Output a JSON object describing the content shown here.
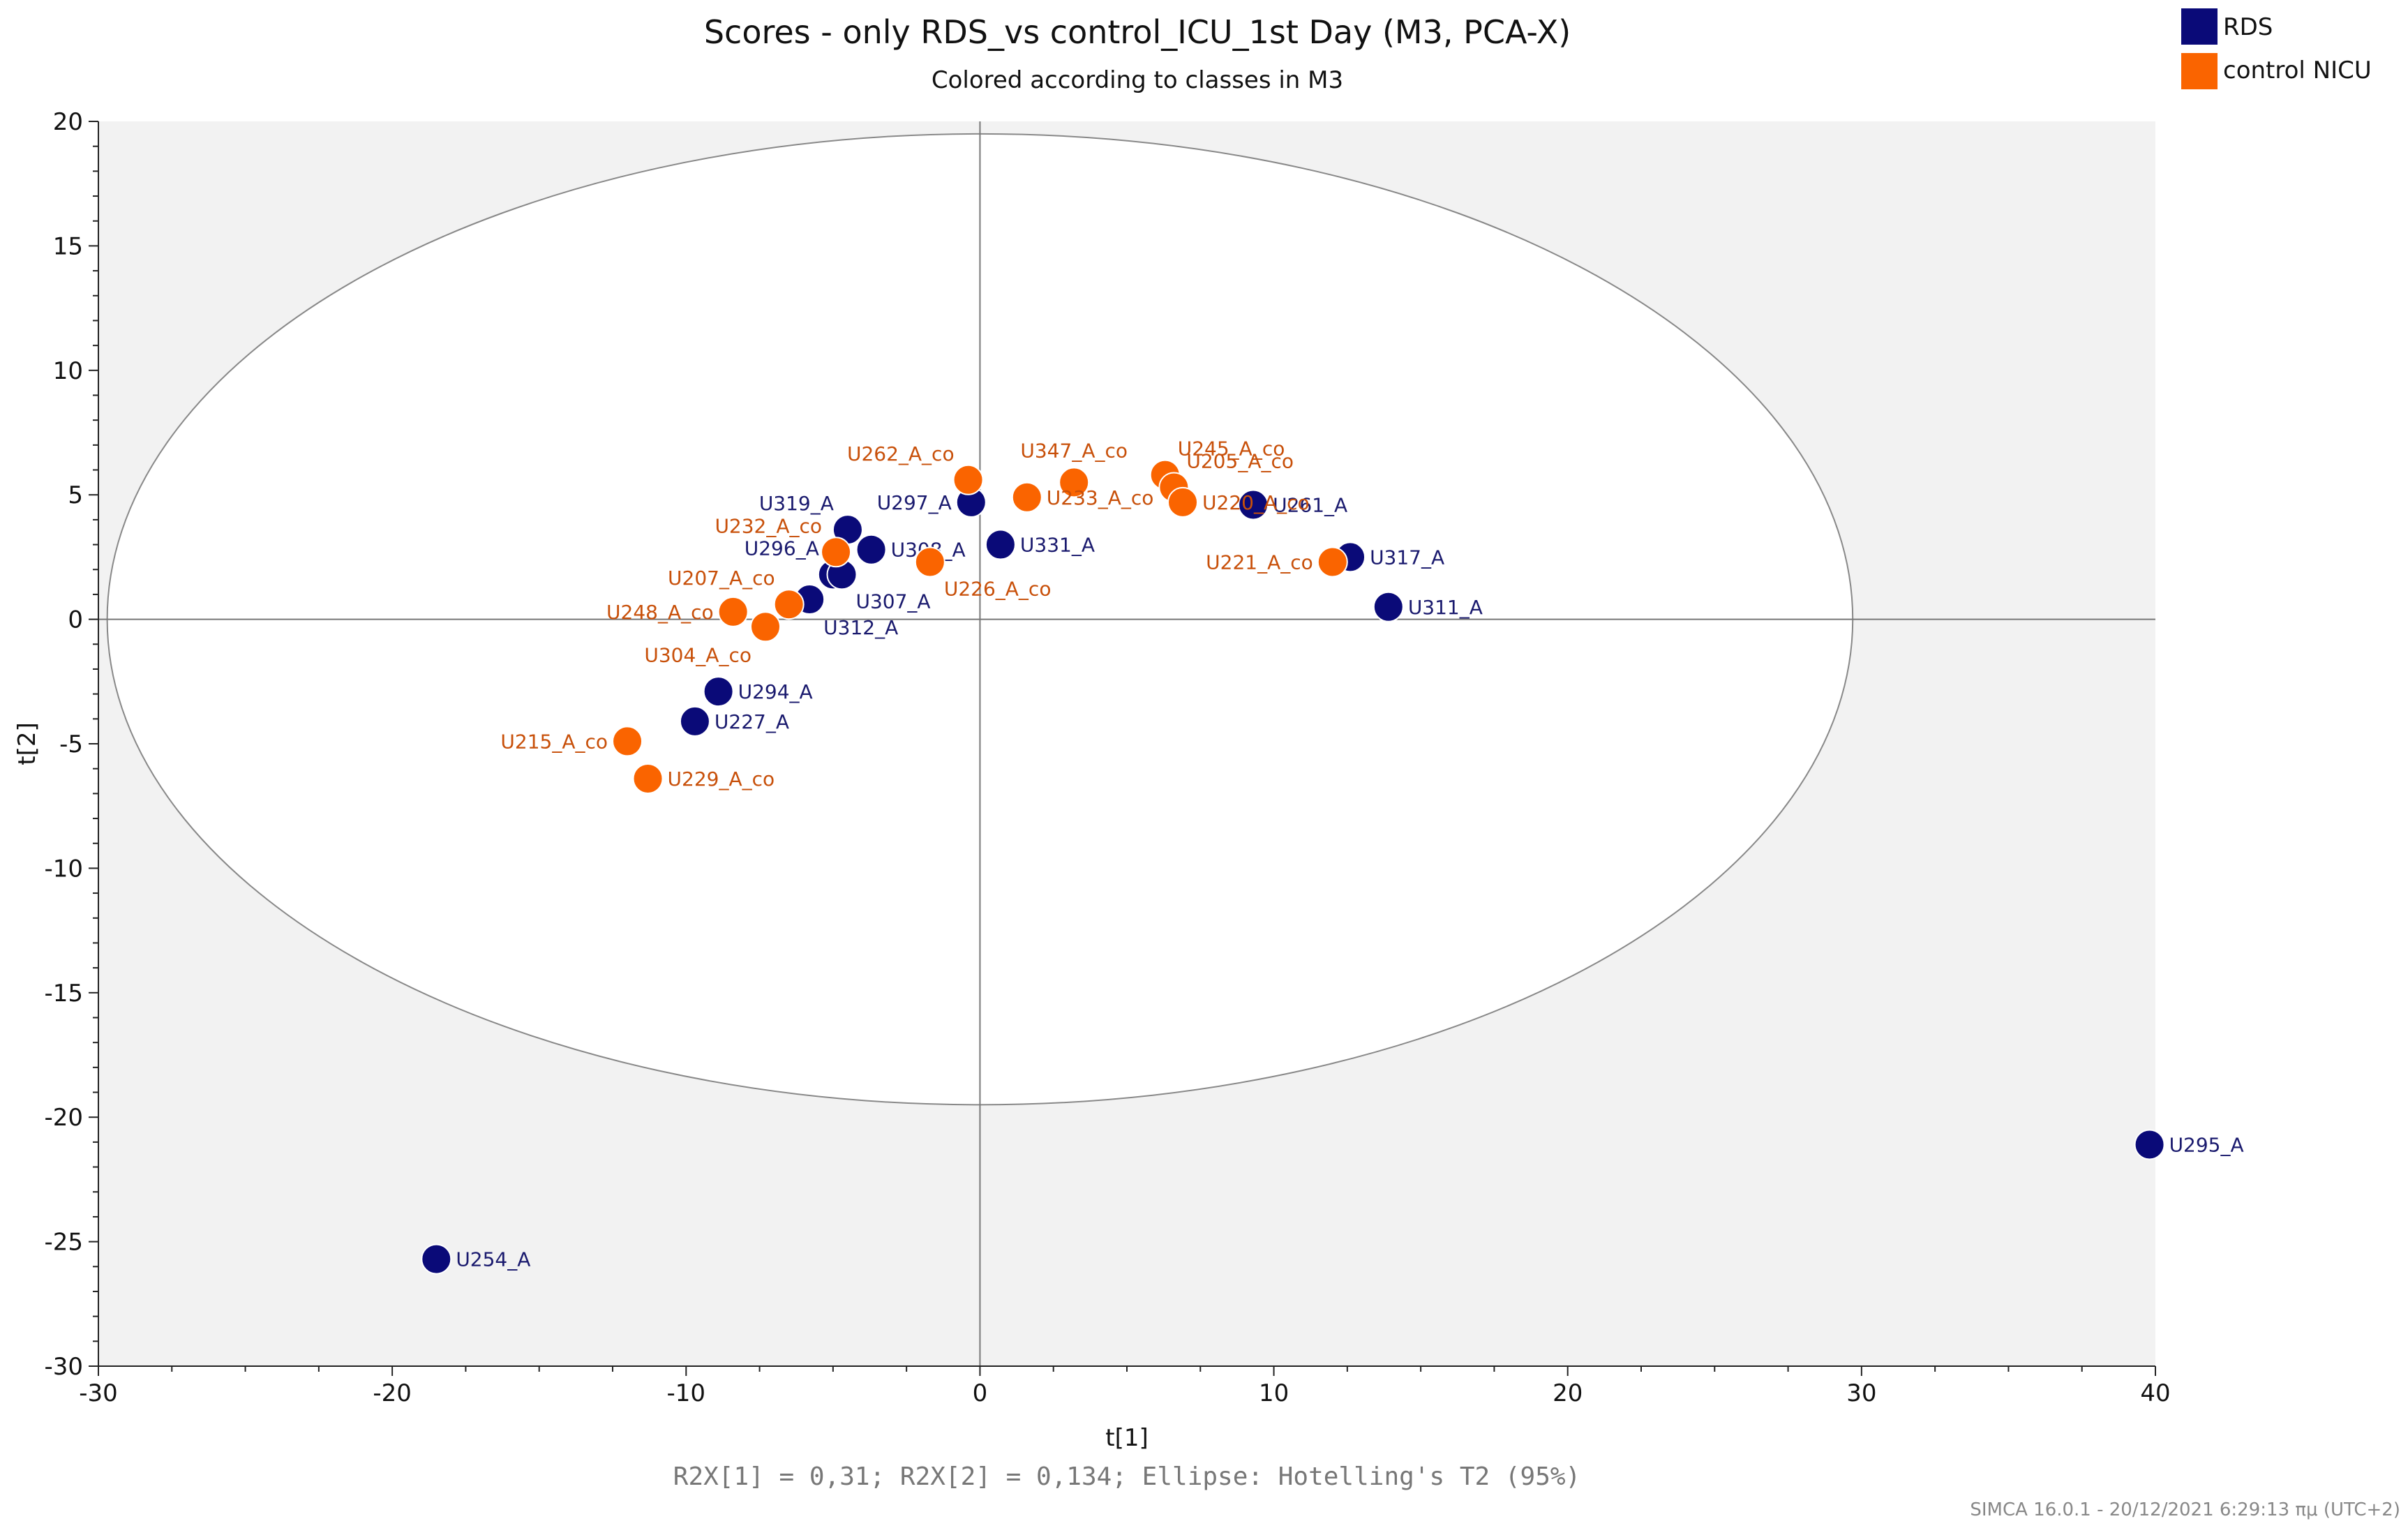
{
  "chart_data": {
    "type": "scatter",
    "title": "Scores - only RDS_vs control_ICU_1st Day (M3, PCA-X)",
    "subtitle": "Colored according to classes in M3",
    "xlabel": "t[1]",
    "ylabel": "t[2]",
    "xlim": [
      -30,
      40
    ],
    "ylim": [
      -30,
      20
    ],
    "xticks": [
      "-30",
      "-20",
      "-10",
      "0",
      "10",
      "20",
      "30",
      "40"
    ],
    "yticks": [
      "20",
      "15",
      "10",
      "5",
      "0",
      "-5",
      "-10",
      "-15",
      "-20",
      "-25",
      "-30"
    ],
    "footer": "R2X[1] = 0,31; R2X[2] = 0,134; Ellipse: Hotelling's T2 (95%)",
    "stamp": "SIMCA 16.0.1 - 20/12/2021 6:29:13 πμ (UTC+2)",
    "ellipse": {
      "cx": 0,
      "cy": 0,
      "rx": 29.7,
      "ry": 19.5
    },
    "legend": [
      {
        "name": "RDS",
        "color": "#0a0a78"
      },
      {
        "name": "control NICU",
        "color": "#fa6400"
      }
    ],
    "series": [
      {
        "name": "RDS",
        "color": "#0a0a78",
        "points": [
          {
            "label": "U319_A",
            "x": -4.5,
            "y": 3.6
          },
          {
            "label": "U297_A",
            "x": -0.3,
            "y": 4.7
          },
          {
            "label": "U308_A",
            "x": -3.7,
            "y": 2.8
          },
          {
            "label": "U331_A",
            "x": 0.7,
            "y": 3.0
          },
          {
            "label": "U296_A",
            "x": -5.0,
            "y": 1.8
          },
          {
            "label": "U307_A",
            "x": -4.7,
            "y": 1.8
          },
          {
            "label": "U312_A",
            "x": -5.8,
            "y": 0.8
          },
          {
            "label": "U261_A",
            "x": 9.3,
            "y": 4.6
          },
          {
            "label": "U317_A",
            "x": 12.6,
            "y": 2.5
          },
          {
            "label": "U311_A",
            "x": 13.9,
            "y": 0.5
          },
          {
            "label": "U294_A",
            "x": -8.9,
            "y": -2.9
          },
          {
            "label": "U227_A",
            "x": -9.7,
            "y": -4.1
          },
          {
            "label": "U254_A",
            "x": -18.5,
            "y": -25.7
          },
          {
            "label": "U295_A",
            "x": 39.8,
            "y": -21.1
          }
        ]
      },
      {
        "name": "control NICU",
        "color": "#fa6400",
        "points": [
          {
            "label": "U262_A_co",
            "x": -0.4,
            "y": 5.6
          },
          {
            "label": "U347_A_co",
            "x": 3.2,
            "y": 5.5
          },
          {
            "label": "U245_A_co",
            "x": 6.3,
            "y": 5.8
          },
          {
            "label": "U205_A_co",
            "x": 6.6,
            "y": 5.3
          },
          {
            "label": "U233_A_co",
            "x": 1.6,
            "y": 4.9
          },
          {
            "label": "U220_A_co",
            "x": 6.9,
            "y": 4.7
          },
          {
            "label": "U232_A_co",
            "x": -4.9,
            "y": 2.7
          },
          {
            "label": "U226_A_co",
            "x": -1.7,
            "y": 2.3
          },
          {
            "label": "U221_A_co",
            "x": 12.0,
            "y": 2.3
          },
          {
            "label": "U207_A_co",
            "x": -6.5,
            "y": 0.6
          },
          {
            "label": "U248_A_co",
            "x": -8.4,
            "y": 0.3
          },
          {
            "label": "U304_A_co",
            "x": -7.3,
            "y": -0.3
          },
          {
            "label": "U215_A_co",
            "x": -12.0,
            "y": -4.9
          },
          {
            "label": "U229_A_co",
            "x": -11.3,
            "y": -6.4
          }
        ]
      }
    ]
  }
}
